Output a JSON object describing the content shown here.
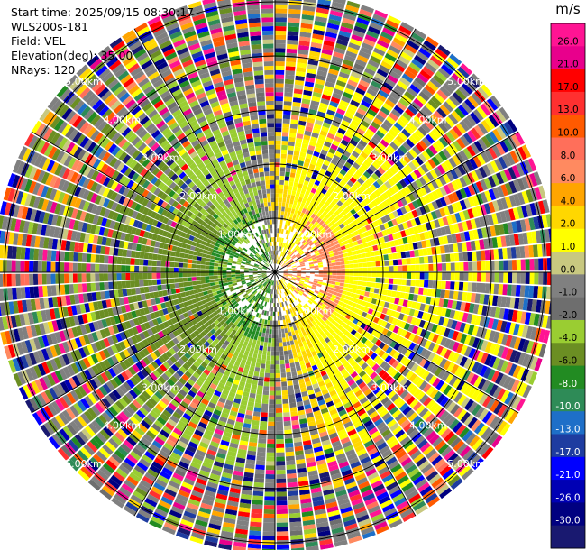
{
  "info": {
    "start_time": "Start time: 2025/09/15 08:30:17",
    "instrument": "WLS200s-181",
    "field": "Field: VEL",
    "elevation": "Elevation(deg): 35.00",
    "nrays": "NRays: 120"
  },
  "chart_data": {
    "type": "heatmap",
    "projection": "polar-ppi",
    "field": "VEL",
    "elevation_deg": 35.0,
    "nrays": 120,
    "range_rings_km": [
      1.0,
      2.0,
      3.0,
      4.0,
      5.0
    ],
    "ring_labels": [
      "1.00km",
      "2.00km",
      "3.00km",
      "4.00km",
      "5.00km"
    ],
    "max_range_km": 5.2,
    "grid": true,
    "colorbar": {
      "unit": "m/s",
      "ticks": [
        "26.0",
        "21.0",
        "17.0",
        "13.0",
        "10.0",
        "8.0",
        "6.0",
        "4.0",
        "2.0",
        "1.0",
        "0.0",
        "-1.0",
        "-2.0",
        "-4.0",
        "-6.0",
        "-8.0",
        "-10.0",
        "-13.0",
        "-17.0",
        "-21.0",
        "-26.0",
        "-30.0"
      ],
      "colors": [
        "#ff1493",
        "#e8008c",
        "#ff0000",
        "#ff3030",
        "#ff5a00",
        "#ff6f5a",
        "#ff8a60",
        "#ffa500",
        "#ffd700",
        "#ffff00",
        "#c8c880",
        "#808080",
        "#6e6e6e",
        "#9acd32",
        "#6b8e23",
        "#228b22",
        "#2e8b57",
        "#1e6fc8",
        "#1e3ca0",
        "#0000ff",
        "#0000b4",
        "#000080",
        "#191970"
      ]
    },
    "colors": {
      "approaching_near": "#228b22",
      "approaching": "#9acd32",
      "receding_near": "#ff8a60",
      "receding": "#ffff00",
      "noise_gray": "#808080"
    }
  }
}
